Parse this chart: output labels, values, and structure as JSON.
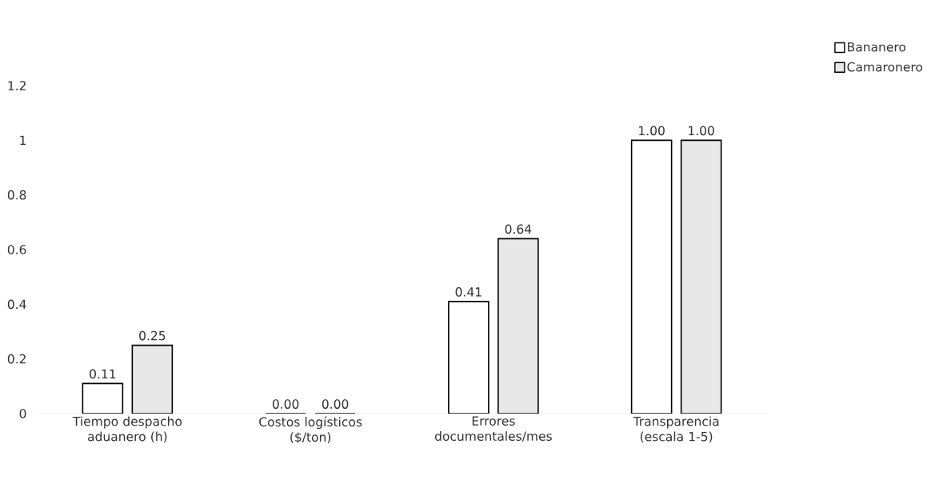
{
  "chart_data": {
    "type": "bar",
    "categories": [
      "Tiempo despacho aduanero (h)",
      "Costos logísticos ($/ton)",
      "Errores documentales/mes",
      "Transparencia (escala 1-5)"
    ],
    "series": [
      {
        "name": "Bananero",
        "color": "#ffffff",
        "values": [
          0.11,
          0,
          0.41,
          1
        ],
        "value_labels": [
          "0.11",
          "0.00",
          "0.41",
          "1.00"
        ]
      },
      {
        "name": "Camaronero",
        "color": "#e8e8e8",
        "values": [
          0.25,
          0,
          0.64,
          1
        ],
        "value_labels": [
          "0.25",
          "0.00",
          "0.64",
          "1.00"
        ]
      }
    ],
    "ylim": [
      0,
      1.2
    ],
    "yticks": [
      0,
      0.2,
      0.4,
      0.6,
      0.8,
      1,
      1.2
    ],
    "grid": false,
    "legend": "top right"
  }
}
